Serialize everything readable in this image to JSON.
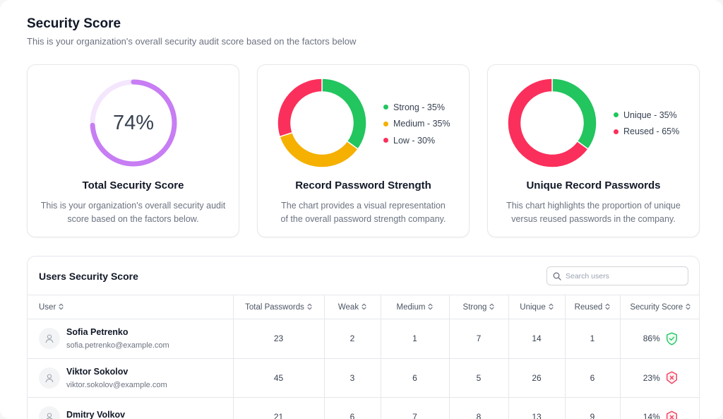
{
  "header": {
    "title": "Security Score",
    "subtitle": "This is your organization's overall security audit score based on the factors below"
  },
  "cards": {
    "total": {
      "score_label": "74%",
      "score_value": 0.74,
      "title": "Total Security Score",
      "desc_line1": "This is your organization's overall security audit",
      "desc_line2": "score based on the factors below.",
      "colors": {
        "ring": "#c77df3",
        "track": "#f3e6fd"
      }
    },
    "strength": {
      "title": "Record Password Strength",
      "desc_line1": "The chart provides a visual representation",
      "desc_line2": "of the overall password strength company.",
      "legend": [
        "Strong - 35%",
        "Medium - 35%",
        "Low - 30%"
      ]
    },
    "unique": {
      "title": "Unique Record Passwords",
      "desc_line1": "This chart highlights the proportion of unique",
      "desc_line2": "versus reused passwords in the company.",
      "legend": [
        "Unique - 35%",
        "Reused - 65%"
      ]
    }
  },
  "chart_data": [
    {
      "type": "pie",
      "categories": [
        "Strong",
        "Medium",
        "Low"
      ],
      "values": [
        35,
        35,
        30
      ],
      "colors": [
        "#22c55e",
        "#f5b000",
        "#fb2f5b"
      ]
    },
    {
      "type": "pie",
      "categories": [
        "Unique",
        "Reused"
      ],
      "values": [
        35,
        65
      ],
      "colors": [
        "#22c55e",
        "#fb2f5b"
      ]
    }
  ],
  "users_table": {
    "title": "Users Security Score",
    "search_placeholder": "Search users",
    "columns": [
      "User",
      "Total Passwords",
      "Weak",
      "Medium",
      "Strong",
      "Unique",
      "Reused",
      "Security Score"
    ],
    "rows": [
      {
        "name": "Sofia Petrenko",
        "email": "sofia.petrenko@example.com",
        "total": "23",
        "weak": "2",
        "medium": "1",
        "strong": "7",
        "unique": "14",
        "reused": "1",
        "score": "86%",
        "status": "secure"
      },
      {
        "name": "Viktor Sokolov",
        "email": "viktor.sokolov@example.com",
        "total": "45",
        "weak": "3",
        "medium": "6",
        "strong": "5",
        "unique": "26",
        "reused": "6",
        "score": "23%",
        "status": "insecure"
      },
      {
        "name": "Dmitry Volkov",
        "email": "",
        "total": "21",
        "weak": "6",
        "medium": "7",
        "strong": "8",
        "unique": "13",
        "reused": "9",
        "score": "14%",
        "status": "insecure"
      }
    ],
    "colors": {
      "secure": "#22c55e",
      "insecure": "#f43f5e"
    }
  }
}
